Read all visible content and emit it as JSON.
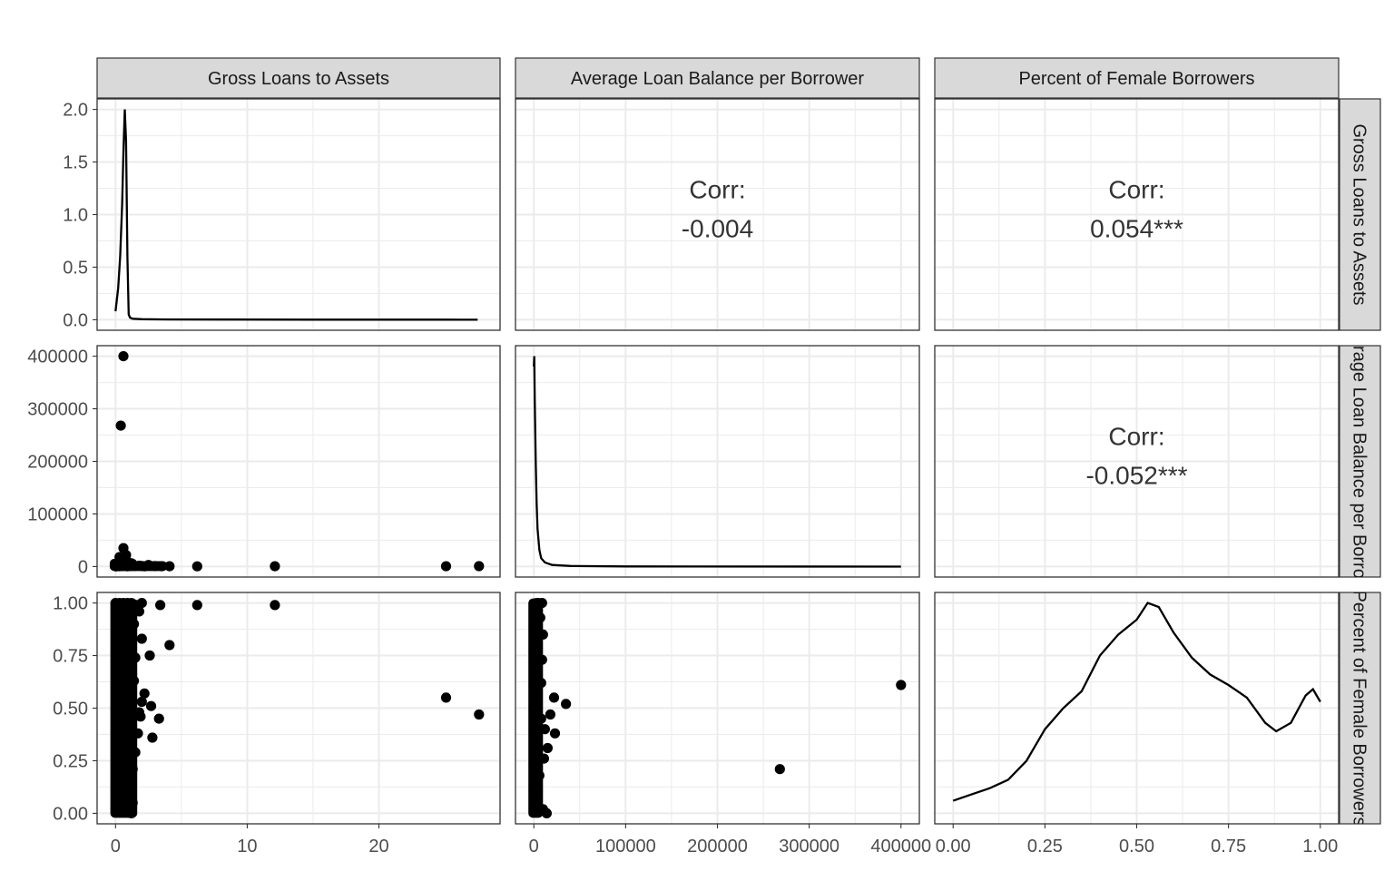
{
  "chart_data": {
    "type": "scatter",
    "variables": [
      "Gross Loans to Assets",
      "Average Loan Balance per Borrower",
      "Percent of Female Borrowers"
    ],
    "axes": {
      "gla": {
        "range": [
          -1.4,
          29.2
        ],
        "ticks": [
          0,
          10,
          20
        ],
        "tick_labels": [
          "0",
          "10",
          "20"
        ]
      },
      "alb": {
        "range": [
          -20000,
          420000
        ],
        "ticks": [
          0,
          100000,
          200000,
          300000,
          400000
        ],
        "tick_labels": [
          "0",
          "100000",
          "200000",
          "300000",
          "400000"
        ]
      },
      "pfb": {
        "range": [
          -0.05,
          1.05
        ],
        "ticks": [
          0,
          0.25,
          0.5,
          0.75,
          1.0
        ],
        "tick_labels": [
          "0.00",
          "0.25",
          "0.50",
          "0.75",
          "1.00"
        ]
      },
      "density_gla": {
        "range": [
          -0.1,
          2.1
        ],
        "ticks": [
          0,
          0.5,
          1.0,
          1.5,
          2.0
        ],
        "tick_labels": [
          "0.0",
          "0.5",
          "1.0",
          "1.5",
          "2.0"
        ]
      }
    },
    "correlations": {
      "gla_alb": {
        "label": "Corr:",
        "value": "-0.004"
      },
      "gla_pfb": {
        "label": "Corr:",
        "value": "0.054***"
      },
      "alb_pfb": {
        "label": "Corr:",
        "value": "-0.052***"
      }
    },
    "density_gla": {
      "x": [
        0.0,
        0.2,
        0.35,
        0.5,
        0.6,
        0.7,
        0.8,
        0.9,
        1.0,
        1.1,
        1.3,
        2,
        4,
        8,
        15,
        25,
        27.5
      ],
      "y": [
        0.08,
        0.3,
        0.6,
        1.1,
        1.6,
        2.0,
        1.7,
        0.6,
        0.05,
        0.02,
        0.01,
        0.005,
        0.003,
        0.002,
        0.001,
        0.001,
        0.0
      ]
    },
    "density_alb": {
      "x": [
        0,
        500,
        1000,
        2000,
        3000,
        4000,
        6000,
        8000,
        12000,
        20000,
        40000,
        100000,
        400000
      ],
      "y": [
        0.95,
        1.0,
        0.8,
        0.5,
        0.3,
        0.18,
        0.08,
        0.04,
        0.02,
        0.008,
        0.003,
        0.001,
        0.0
      ]
    },
    "density_pfb": {
      "x": [
        0.0,
        0.05,
        0.1,
        0.15,
        0.2,
        0.25,
        0.3,
        0.35,
        0.4,
        0.45,
        0.5,
        0.53,
        0.56,
        0.6,
        0.65,
        0.7,
        0.75,
        0.8,
        0.85,
        0.88,
        0.92,
        0.96,
        0.98,
        1.0
      ],
      "y": [
        0.06,
        0.09,
        0.12,
        0.16,
        0.25,
        0.4,
        0.5,
        0.58,
        0.75,
        0.85,
        0.92,
        1.0,
        0.98,
        0.86,
        0.74,
        0.66,
        0.61,
        0.55,
        0.43,
        0.39,
        0.43,
        0.56,
        0.59,
        0.53
      ]
    },
    "scatter_gla_alb": [
      [
        0.6,
        400000
      ],
      [
        0.4,
        268000
      ],
      [
        0.6,
        35000
      ],
      [
        0.3,
        18000
      ],
      [
        0.5,
        12000
      ],
      [
        0.2,
        8000
      ],
      [
        0.8,
        22000
      ],
      [
        0.4,
        5000
      ],
      [
        0.9,
        9000
      ],
      [
        1.2,
        6000
      ],
      [
        0.1,
        3000
      ],
      [
        0.7,
        1500
      ],
      [
        1.0,
        2000
      ],
      [
        1.5,
        1000
      ],
      [
        2.0,
        800
      ],
      [
        2.5,
        3000
      ],
      [
        3.0,
        900
      ],
      [
        3.5,
        500
      ],
      [
        4.1,
        600
      ],
      [
        6.2,
        400
      ],
      [
        12.1,
        500
      ],
      [
        25.1,
        600
      ],
      [
        27.6,
        700
      ],
      [
        0.05,
        200
      ],
      [
        0.3,
        600
      ],
      [
        0.5,
        900
      ],
      [
        1.8,
        1500
      ],
      [
        2.2,
        400
      ],
      [
        0.9,
        300
      ],
      [
        1.3,
        2500
      ]
    ],
    "scatter_gla_pfb": [
      [
        0.0,
        1.0
      ],
      [
        0.3,
        1.0
      ],
      [
        0.6,
        1.0
      ],
      [
        0.9,
        1.0
      ],
      [
        1.2,
        1.0
      ],
      [
        1.6,
        0.99
      ],
      [
        2.0,
        1.0
      ],
      [
        3.4,
        0.99
      ],
      [
        6.2,
        0.99
      ],
      [
        12.1,
        0.99
      ],
      [
        4.1,
        0.8
      ],
      [
        2.6,
        0.75
      ],
      [
        2.0,
        0.83
      ],
      [
        1.5,
        0.74
      ],
      [
        1.8,
        0.96
      ],
      [
        1.4,
        0.9
      ],
      [
        2.2,
        0.57
      ],
      [
        2.0,
        0.53
      ],
      [
        1.8,
        0.48
      ],
      [
        2.7,
        0.51
      ],
      [
        3.3,
        0.45
      ],
      [
        2.8,
        0.36
      ],
      [
        1.9,
        0.46
      ],
      [
        1.5,
        0.29
      ],
      [
        1.3,
        0.21
      ],
      [
        1.4,
        0.63
      ],
      [
        25.1,
        0.55
      ],
      [
        27.6,
        0.47
      ],
      [
        1.2,
        0.0
      ],
      [
        1.3,
        0.05
      ],
      [
        1.0,
        0.01
      ],
      [
        0.8,
        0.12
      ],
      [
        1.1,
        0.4
      ],
      [
        1.7,
        0.38
      ]
    ],
    "scatter_alb_pfb": [
      [
        400000,
        0.61
      ],
      [
        268000,
        0.21
      ],
      [
        35000,
        0.52
      ],
      [
        22000,
        0.55
      ],
      [
        18000,
        0.47
      ],
      [
        23000,
        0.38
      ],
      [
        12000,
        0.4
      ],
      [
        15000,
        0.31
      ],
      [
        9000,
        0.73
      ],
      [
        10000,
        0.85
      ],
      [
        7000,
        0.93
      ],
      [
        8000,
        0.62
      ],
      [
        6000,
        0.18
      ],
      [
        14000,
        0.0
      ],
      [
        10000,
        0.02
      ],
      [
        5000,
        1.0
      ],
      [
        3000,
        1.0
      ],
      [
        9000,
        1.0
      ],
      [
        11000,
        0.26
      ],
      [
        8000,
        0.45
      ]
    ]
  }
}
